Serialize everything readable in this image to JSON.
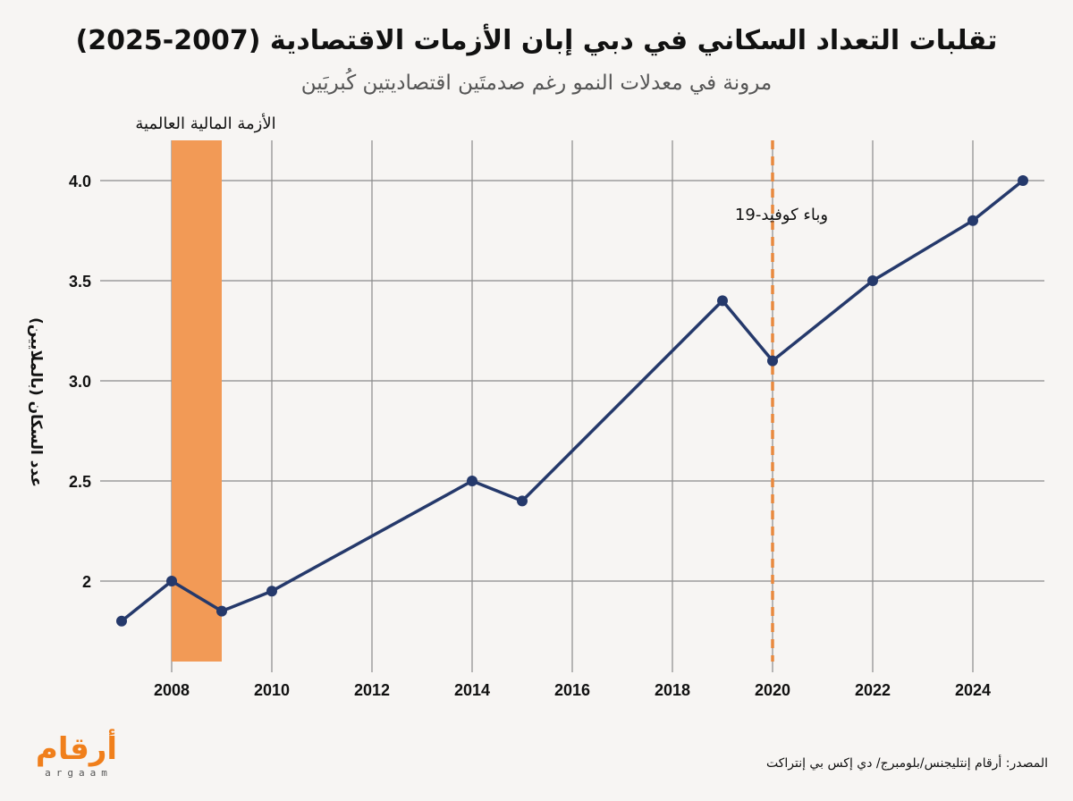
{
  "title": "تقلبات التعداد السكاني في دبي إبان الأزمات الاقتصادية (2007-2025)",
  "subtitle": "مرونة في معدلات النمو رغم صدمتَين اقتصاديتين كُبريَين",
  "source": "المصدر: أرقام إنتليجنس/بلومبرج/ دي إكس بي إنتراكت",
  "logo": {
    "arabic": "أرقام",
    "latin": "argaam",
    "color": "#f07f1b"
  },
  "colors": {
    "line": "#25396b",
    "crisis_band": "#f29a56",
    "covid_line": "#e8893f",
    "grid": "#8a8a8a",
    "background": "#f7f5f3"
  },
  "chart_data": {
    "type": "line",
    "title": "تقلبات التعداد السكاني في دبي إبان الأزمات الاقتصادية (2007-2025)",
    "subtitle": "مرونة في معدلات النمو رغم صدمتَين اقتصاديتين كُبريَين",
    "xlabel": "",
    "ylabel": "عدد السكان (بالملايين)",
    "xlim": [
      2007,
      2025
    ],
    "ylim": [
      1.6,
      4.2
    ],
    "grid": true,
    "x_ticks": [
      2008,
      2010,
      2012,
      2014,
      2016,
      2018,
      2020,
      2022,
      2024
    ],
    "x_tick_labels": [
      "2008",
      "2010",
      "2012",
      "2014",
      "2016",
      "2018",
      "2020",
      "2022",
      "2024"
    ],
    "y_ticks": [
      2.0,
      2.5,
      3.0,
      3.5,
      4.0
    ],
    "y_tick_labels": [
      "2",
      "2.5",
      "3.0",
      "3.5",
      "4.0"
    ],
    "series": [
      {
        "name": "عدد السكان",
        "x": [
          2007,
          2008,
          2009,
          2010,
          2014,
          2015,
          2019,
          2020,
          2022,
          2024,
          2025
        ],
        "values": [
          1.8,
          2.0,
          1.85,
          1.95,
          2.5,
          2.4,
          3.4,
          3.1,
          3.5,
          3.8,
          4.0
        ]
      }
    ],
    "annotations": [
      {
        "type": "band",
        "x_start": 2008,
        "x_end": 2009,
        "label": "الأزمة المالية العالمية"
      },
      {
        "type": "vline",
        "x": 2020,
        "label": "وباء كوفيد-19"
      }
    ]
  }
}
